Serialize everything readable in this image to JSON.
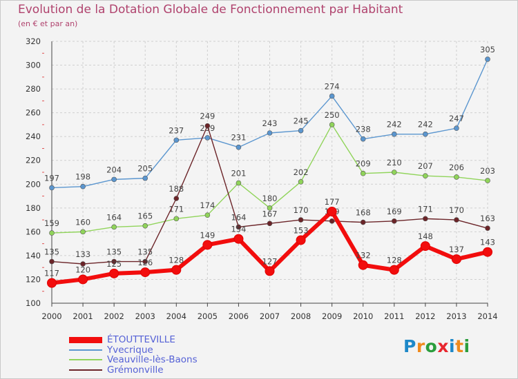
{
  "title": "Evolution de la Dotation Globale de Fonctionnement par Habitant",
  "subtitle": "(en € et par an)",
  "logo": {
    "text": "Proxiti",
    "letters": [
      "P",
      "r",
      "o",
      "x",
      "i",
      "t",
      "i"
    ],
    "colors": [
      "#1e88c8",
      "#f08a1c",
      "#2a9d3c",
      "#e8262e",
      "#1e88c8",
      "#f08a1c",
      "#2a9d3c"
    ]
  },
  "chart_data": {
    "type": "line",
    "title": "Evolution de la Dotation Globale de Fonctionnement par Habitant",
    "subtitle": "(en € et par an)",
    "xlabel": "",
    "ylabel": "",
    "ylim": [
      100,
      320
    ],
    "yticks": [
      100,
      120,
      140,
      160,
      180,
      200,
      220,
      240,
      260,
      280,
      300,
      320
    ],
    "grid": true,
    "legend_position": "bottom-left",
    "categories": [
      "2000",
      "2001",
      "2002",
      "2003",
      "2004",
      "2005",
      "2006",
      "2007",
      "2008",
      "2009",
      "2010",
      "2011",
      "2012",
      "2013",
      "2014"
    ],
    "series": [
      {
        "name": "Yvecrique",
        "color": "#5b96cf",
        "values": [
          197,
          198,
          204,
          205,
          237,
          239,
          231,
          243,
          245,
          274,
          238,
          242,
          242,
          247,
          305
        ]
      },
      {
        "name": "Veauville-lès-Baons",
        "color": "#90d45a",
        "values": [
          159,
          160,
          164,
          165,
          171,
          174,
          201,
          180,
          202,
          250,
          209,
          210,
          207,
          206,
          203
        ]
      },
      {
        "name": "Grémonville",
        "color": "#6b2428",
        "values": [
          135,
          133,
          135,
          135,
          188,
          249,
          164,
          167,
          170,
          169,
          168,
          169,
          171,
          170,
          163
        ]
      },
      {
        "name": "ÉTOUTTEVILLE",
        "color": "#f20d0d",
        "values": [
          117,
          120,
          125,
          126,
          128,
          149,
          154,
          127,
          153,
          177,
          132,
          128,
          148,
          137,
          143
        ]
      }
    ]
  }
}
